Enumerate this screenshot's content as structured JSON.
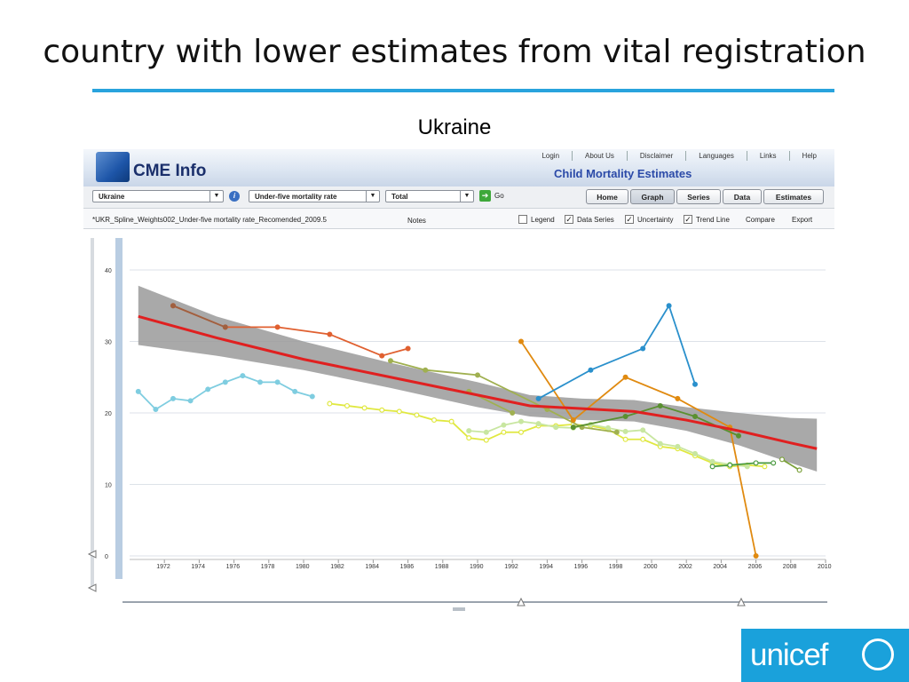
{
  "slide": {
    "title": "country with lower estimates from vital registration",
    "subtitle": "Ukraine"
  },
  "app": {
    "logo_text": "CME Info",
    "title": "Child Mortality Estimates",
    "top_links": [
      "Login",
      "About Us",
      "Disclaimer",
      "Languages",
      "Links",
      "Help"
    ],
    "country_select": "Ukraine",
    "indicator_select": "Under-five mortality rate",
    "sex_select": "Total",
    "go_label": "Go",
    "nav": [
      "Home",
      "Graph",
      "Series",
      "Data",
      "Estimates"
    ],
    "active_nav": "Graph",
    "series_name": "*UKR_Spline_Weights002_Under-five mortality rate_Recomended_2009.5",
    "notes_label": "Notes",
    "options": [
      {
        "label": "Legend",
        "checked": false
      },
      {
        "label": "Data Series",
        "checked": true
      },
      {
        "label": "Uncertainty",
        "checked": true
      },
      {
        "label": "Trend Line",
        "checked": true
      }
    ],
    "compare_label": "Compare",
    "export_label": "Export"
  },
  "logo": {
    "text": "unicef"
  },
  "colors": {
    "accent": "#29a3dd",
    "trend": "#e02020",
    "uncertainty": "#9a9a9a",
    "unicef": "#1aa1db"
  },
  "chart_data": {
    "type": "line",
    "xlim": [
      1970,
      2010
    ],
    "ylim": [
      0,
      40
    ],
    "xticks": [
      1972,
      1974,
      1976,
      1978,
      1980,
      1982,
      1984,
      1986,
      1988,
      1990,
      1992,
      1994,
      1996,
      1998,
      2000,
      2002,
      2004,
      2006,
      2008,
      2010
    ],
    "yticks": [
      0,
      10,
      20,
      30,
      40
    ],
    "grid": true,
    "trend": {
      "x": [
        1970.5,
        1975,
        1980,
        1985,
        1990,
        1993,
        1996,
        1999,
        2002,
        2005,
        2008,
        2009.5
      ],
      "y": [
        33.5,
        30.5,
        27.5,
        25,
        22.5,
        21,
        20.6,
        20.2,
        19,
        17.5,
        15.8,
        15
      ]
    },
    "uncertainty": {
      "x": [
        1970.5,
        1975,
        1980,
        1985,
        1990,
        1993,
        1996,
        1999,
        2002,
        2005,
        2008,
        2009.5
      ],
      "lower": [
        29.5,
        28,
        26,
        23.5,
        20.8,
        19.5,
        19,
        18.8,
        17.5,
        15.5,
        13,
        11.8
      ],
      "upper": [
        37.8,
        33.5,
        30,
        27,
        24.3,
        22.5,
        22,
        21.8,
        20.8,
        20,
        19.3,
        19.2
      ]
    },
    "series": [
      {
        "color": "#7fcde0",
        "marker": "dot",
        "x": [
          1970.5,
          1971.5,
          1972.5,
          1973.5,
          1974.5,
          1975.5,
          1976.5,
          1977.5,
          1978.5,
          1979.5,
          1980.5
        ],
        "y": [
          23,
          20.5,
          22,
          21.7,
          23.3,
          24.3,
          25.2,
          24.3,
          24.3,
          23,
          22.3
        ]
      },
      {
        "color": "#e0e840",
        "marker": "open",
        "x": [
          1981.5,
          1982.5,
          1983.5,
          1984.5,
          1985.5,
          1986.5,
          1987.5,
          1988.5,
          1989.5,
          1990.5,
          1991.5,
          1992.5,
          1993.5,
          1994.5,
          1995.5,
          1996.5,
          1997.5,
          1998.5,
          1999.5,
          2000.5,
          2001.5,
          2002.5,
          2003.5,
          2004.5,
          2005.5,
          2006.5
        ],
        "y": [
          21.3,
          21,
          20.7,
          20.4,
          20.2,
          19.7,
          19,
          18.8,
          16.5,
          16.2,
          17.3,
          17.3,
          18.2,
          18.2,
          18.4,
          18.2,
          17.7,
          16.3,
          16.3,
          15.3,
          15,
          14,
          13,
          12.5,
          12.7,
          12.5
        ]
      },
      {
        "color": "#c8e6a0",
        "marker": "dot",
        "x": [
          1989.5,
          1990.5,
          1991.5,
          1992.5,
          1993.5,
          1994.5,
          1995.5,
          1996.5,
          1997.5,
          1998.5,
          1999.5,
          2000.5,
          2001.5,
          2002.5,
          2003.5,
          2004.5,
          2005.5
        ],
        "y": [
          17.5,
          17.3,
          18.3,
          18.8,
          18.5,
          18,
          17.9,
          18.4,
          17.9,
          17.4,
          17.6,
          15.7,
          15.3,
          14.3,
          13.2,
          12.8,
          12.5
        ]
      },
      {
        "color": "#e06030",
        "marker": "dot",
        "x": [
          1972.5,
          1975.5,
          1978.5,
          1981.5,
          1984.5,
          1986
        ],
        "y": [
          35,
          32,
          32,
          31,
          28,
          29
        ]
      },
      {
        "color": "#a06040",
        "marker": "dot",
        "x": [
          1972.5,
          1975.5
        ],
        "y": [
          35,
          32
        ]
      },
      {
        "color": "#a0b050",
        "marker": "dot",
        "x": [
          1985,
          1987,
          1990,
          1994,
          1996,
          1998
        ],
        "y": [
          27.3,
          26,
          25.3,
          20.5,
          18,
          17.3
        ]
      },
      {
        "color": "#a0b050",
        "marker": "dot",
        "x": [
          1989.5,
          1992
        ],
        "y": [
          23,
          20
        ]
      },
      {
        "color": "#e08a10",
        "marker": "dot",
        "x": [
          1992.5,
          1995.5,
          1998.5,
          2001.5,
          2004.5,
          2006
        ],
        "y": [
          30,
          19,
          25,
          22,
          18,
          0
        ]
      },
      {
        "color": "#2a90cc",
        "marker": "dot",
        "x": [
          1993.5,
          1996.5,
          1999.5,
          2001,
          2002.5
        ],
        "y": [
          22,
          26,
          29,
          35,
          24
        ]
      },
      {
        "color": "#5a9030",
        "marker": "dot",
        "x": [
          1995.5,
          1998.5,
          2000.5,
          2002.5,
          2005
        ],
        "y": [
          18,
          19.5,
          21,
          19.5,
          16.8
        ]
      },
      {
        "color": "#4a9a40",
        "marker": "open",
        "x": [
          2003.5,
          2004.5,
          2006,
          2007
        ],
        "y": [
          12.5,
          12.7,
          13,
          13
        ]
      },
      {
        "color": "#7aa038",
        "marker": "open",
        "x": [
          2007.5,
          2008.5
        ],
        "y": [
          13.5,
          12
        ]
      }
    ]
  }
}
